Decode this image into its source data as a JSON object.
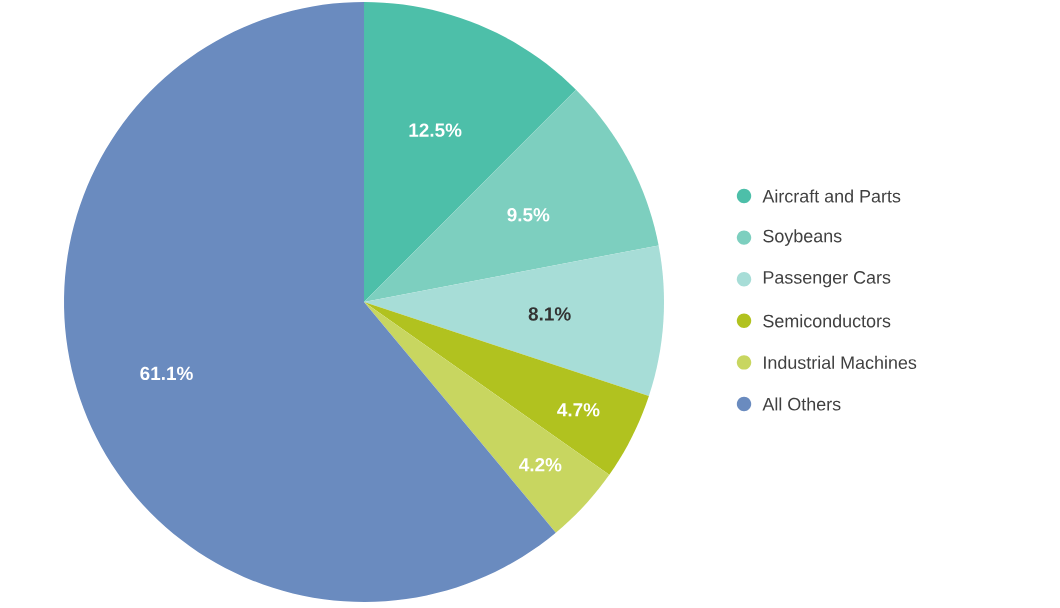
{
  "chart_data": {
    "type": "pie",
    "categories": [
      "Aircraft and Parts",
      "Soybeans",
      "Passenger Cars",
      "Semiconductors",
      "Industrial Machines",
      "All Others"
    ],
    "values": [
      12.5,
      9.5,
      8.1,
      4.7,
      4.2,
      61.1
    ],
    "value_labels": [
      "12.5%",
      "9.5%",
      "8.1%",
      "4.7%",
      "4.2%",
      "61.1%"
    ],
    "colors": [
      "#4dbfa9",
      "#7dcfbf",
      "#a7ddd7",
      "#b1c21f",
      "#c8d660",
      "#6a8bbf"
    ],
    "legend": "right"
  }
}
